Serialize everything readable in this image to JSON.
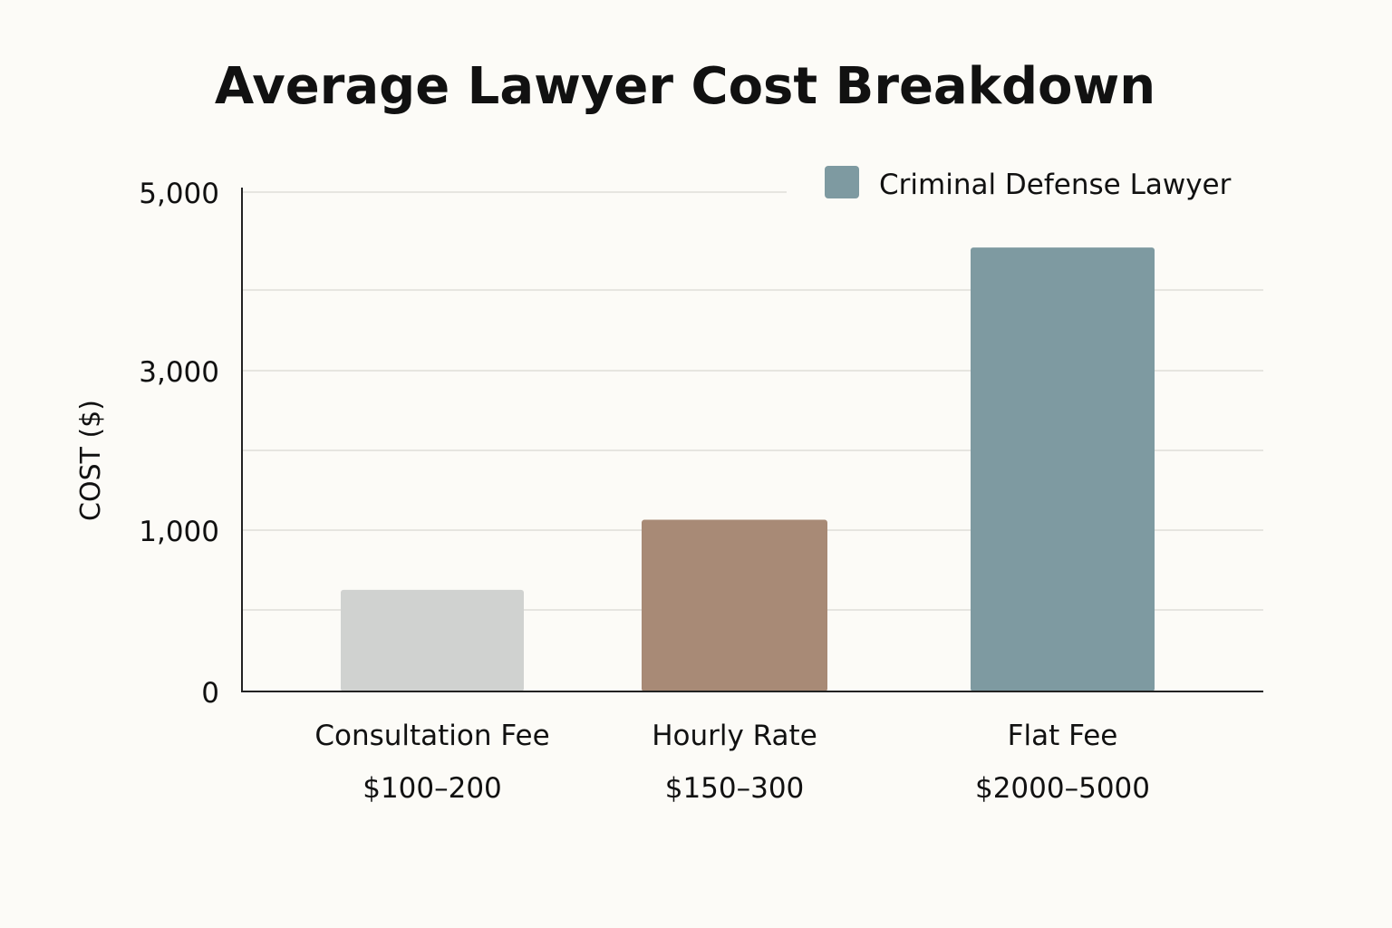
{
  "chart_data": {
    "type": "bar",
    "title": "Average Lawyer Cost Breakdown",
    "xlabel": "",
    "ylabel": "COST ($)",
    "y_ticks": [
      0,
      1000,
      3000,
      5000
    ],
    "y_tick_labels": [
      "0",
      "1,000",
      "3,000",
      "5,000"
    ],
    "ylim": [
      0,
      5000
    ],
    "grid": true,
    "legend": {
      "placement": "top-right",
      "entries": [
        {
          "name": "Criminal Defense Lawyer",
          "color": "#7e9aa1"
        }
      ]
    },
    "categories": [
      "Consultation Fee",
      "Hourly Rate",
      "Flat Fee"
    ],
    "category_ranges": [
      "$100–200",
      "$150–300",
      "$2000–5000"
    ],
    "values": [
      630,
      1130,
      4380
    ],
    "colors": [
      "#d0d2d0",
      "#a88a76",
      "#7e9aa1"
    ]
  }
}
